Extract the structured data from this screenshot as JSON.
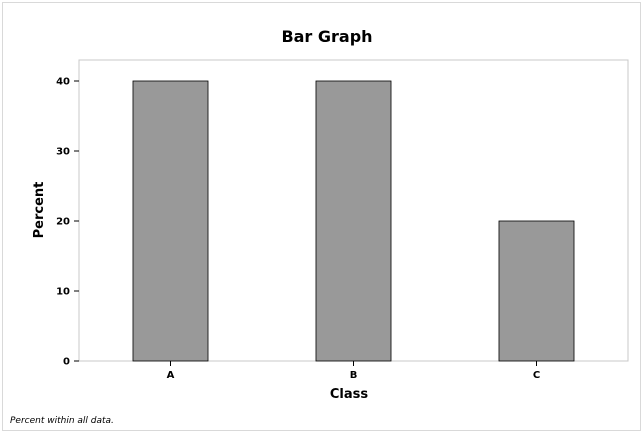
{
  "chart_data": {
    "type": "bar",
    "title": "Bar Graph",
    "xlabel": "Class",
    "ylabel": "Percent",
    "categories": [
      "A",
      "B",
      "C"
    ],
    "values": [
      40,
      40,
      20
    ],
    "ylim": [
      0,
      43
    ],
    "yticks": [
      0,
      10,
      20,
      30,
      40
    ],
    "grid": false,
    "bar_color": "#999999",
    "bar_edge_color": "#000000",
    "plot_border_color": "#c8c8c8"
  },
  "footnote": "Percent within all data."
}
